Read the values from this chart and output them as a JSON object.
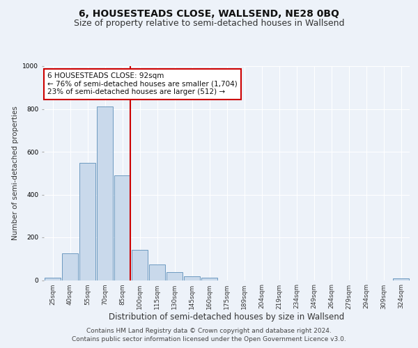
{
  "title": "6, HOUSESTEADS CLOSE, WALLSEND, NE28 0BQ",
  "subtitle": "Size of property relative to semi-detached houses in Wallsend",
  "xlabel": "Distribution of semi-detached houses by size in Wallsend",
  "ylabel": "Number of semi-detached properties",
  "categories": [
    "25sqm",
    "40sqm",
    "55sqm",
    "70sqm",
    "85sqm",
    "100sqm",
    "115sqm",
    "130sqm",
    "145sqm",
    "160sqm",
    "175sqm",
    "189sqm",
    "204sqm",
    "219sqm",
    "234sqm",
    "249sqm",
    "264sqm",
    "279sqm",
    "294sqm",
    "309sqm",
    "324sqm"
  ],
  "values": [
    12,
    125,
    548,
    812,
    490,
    140,
    72,
    37,
    18,
    12,
    0,
    0,
    0,
    0,
    0,
    0,
    0,
    0,
    0,
    0,
    8
  ],
  "bar_color": "#c9d9eb",
  "bar_edge_color": "#5b8db8",
  "property_bin_index": 4,
  "annotation_text_line1": "6 HOUSESTEADS CLOSE: 92sqm",
  "annotation_text_line2": "← 76% of semi-detached houses are smaller (1,704)",
  "annotation_text_line3": "23% of semi-detached houses are larger (512) →",
  "vline_color": "#cc0000",
  "annotation_box_edge_color": "#cc0000",
  "footer_line1": "Contains HM Land Registry data © Crown copyright and database right 2024.",
  "footer_line2": "Contains public sector information licensed under the Open Government Licence v3.0.",
  "ylim": [
    0,
    1000
  ],
  "background_color": "#edf2f9",
  "grid_color": "#ffffff",
  "title_fontsize": 10,
  "subtitle_fontsize": 9,
  "xlabel_fontsize": 8.5,
  "ylabel_fontsize": 7.5,
  "tick_fontsize": 6.5,
  "footer_fontsize": 6.5,
  "annot_fontsize": 7.5
}
